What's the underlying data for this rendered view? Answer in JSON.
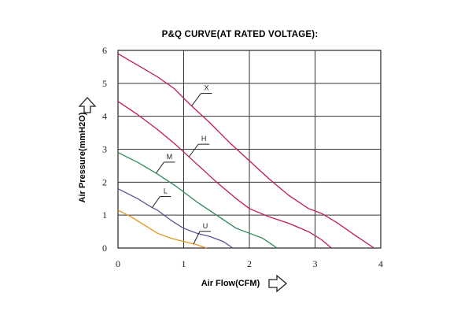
{
  "chart_data": {
    "type": "line",
    "title": "P&Q CURVE(AT RATED VOLTAGE):",
    "xlabel": "Air Flow(CFM)",
    "ylabel": "Air Pressure(mmH2O)",
    "xlim": [
      0,
      4
    ],
    "ylim": [
      0,
      6
    ],
    "x_ticks": [
      "0",
      "1",
      "2",
      "3",
      "4"
    ],
    "y_ticks": [
      "0",
      "1",
      "2",
      "3",
      "4",
      "5",
      "6"
    ],
    "grid": true,
    "series": [
      {
        "name": "X",
        "color": "#c2185b",
        "points": [
          [
            0,
            5.9
          ],
          [
            0.3,
            5.55
          ],
          [
            0.6,
            5.2
          ],
          [
            0.85,
            4.85
          ],
          [
            1.1,
            4.35
          ],
          [
            1.4,
            3.8
          ],
          [
            1.7,
            3.2
          ],
          [
            2.0,
            2.65
          ],
          [
            2.3,
            2.1
          ],
          [
            2.6,
            1.6
          ],
          [
            2.9,
            1.2
          ],
          [
            3.1,
            1.05
          ],
          [
            3.35,
            0.75
          ],
          [
            3.6,
            0.4
          ],
          [
            3.9,
            0.0
          ]
        ]
      },
      {
        "name": "H",
        "color": "#c2185b",
        "points": [
          [
            0,
            4.45
          ],
          [
            0.3,
            4.05
          ],
          [
            0.6,
            3.6
          ],
          [
            0.9,
            3.1
          ],
          [
            1.2,
            2.55
          ],
          [
            1.5,
            2.0
          ],
          [
            1.8,
            1.5
          ],
          [
            2.0,
            1.2
          ],
          [
            2.3,
            0.95
          ],
          [
            2.6,
            0.75
          ],
          [
            2.9,
            0.5
          ],
          [
            3.1,
            0.25
          ],
          [
            3.25,
            0.0
          ]
        ]
      },
      {
        "name": "M",
        "color": "#2e8b57",
        "points": [
          [
            0,
            2.9
          ],
          [
            0.3,
            2.6
          ],
          [
            0.6,
            2.25
          ],
          [
            0.9,
            1.85
          ],
          [
            1.2,
            1.4
          ],
          [
            1.5,
            1.0
          ],
          [
            1.8,
            0.6
          ],
          [
            2.0,
            0.45
          ],
          [
            2.2,
            0.3
          ],
          [
            2.35,
            0.1
          ],
          [
            2.42,
            0.0
          ]
        ]
      },
      {
        "name": "L",
        "color": "#555599",
        "points": [
          [
            0,
            1.8
          ],
          [
            0.3,
            1.5
          ],
          [
            0.5,
            1.25
          ],
          [
            0.6,
            1.15
          ],
          [
            0.8,
            0.85
          ],
          [
            1.0,
            0.6
          ],
          [
            1.2,
            0.45
          ],
          [
            1.4,
            0.35
          ],
          [
            1.6,
            0.2
          ],
          [
            1.75,
            0.0
          ]
        ]
      },
      {
        "name": "U",
        "color": "#e0961e",
        "points": [
          [
            0,
            1.15
          ],
          [
            0.2,
            0.95
          ],
          [
            0.4,
            0.7
          ],
          [
            0.6,
            0.45
          ],
          [
            0.8,
            0.3
          ],
          [
            1.0,
            0.2
          ],
          [
            1.2,
            0.1
          ],
          [
            1.35,
            0.0
          ]
        ]
      }
    ]
  }
}
